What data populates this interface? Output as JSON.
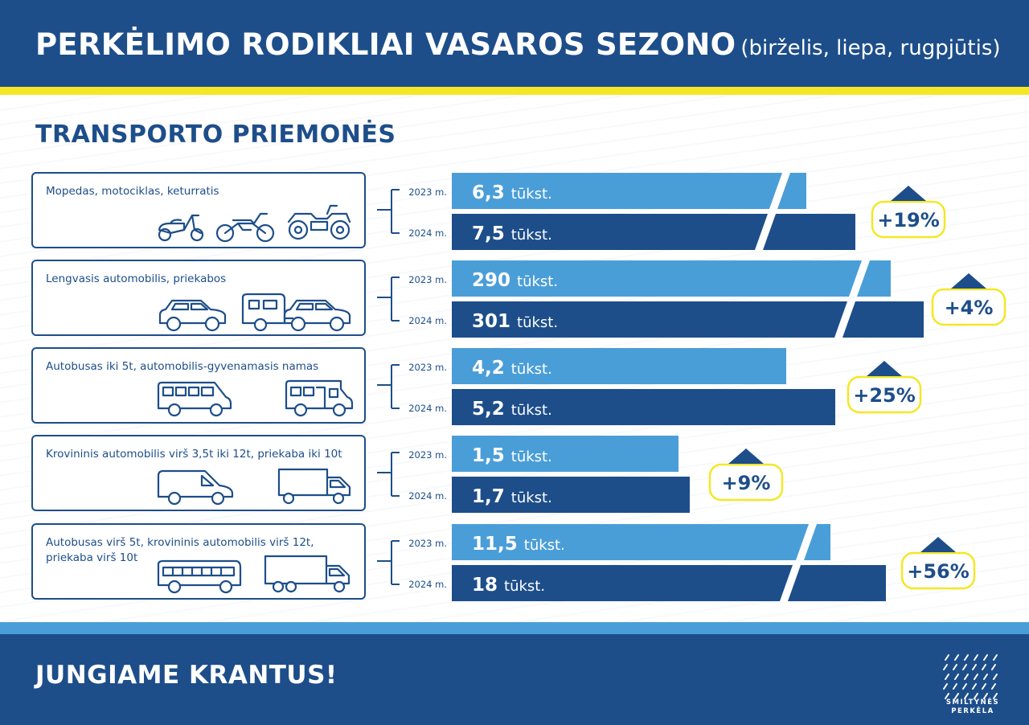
{
  "header": {
    "title_main": "PERKĖLIMO RODIKLIAI VASAROS SEZONO",
    "title_sub": "(birželis, liepa, rugpjūtis)"
  },
  "section_title": "TRANSPORTO PRIEMONĖS",
  "footer": {
    "slogan": "JUNGIAME KRANTUS!",
    "logo_line1": "SMILTYNĖS",
    "logo_line2": "PERKĖLA"
  },
  "colors": {
    "dark_blue": "#1d4e8a",
    "light_blue": "#4a9ed8",
    "yellow": "#f4e726"
  },
  "chart_data": {
    "type": "bar",
    "orientation": "horizontal",
    "unit": "tūkst.",
    "series_names": [
      "2023 m.",
      "2024 m."
    ],
    "categories": [
      {
        "label": "Mopedas, motociklas, keturratis",
        "icons": [
          "moped-icon",
          "motorcycle-icon",
          "quad-bike-icon"
        ],
        "values": [
          6.3,
          7.5
        ],
        "value_labels": [
          "6,3",
          "7,5"
        ],
        "change": "+19%",
        "broken_axis": true
      },
      {
        "label": "Lengvasis automobilis, priekabos",
        "icons": [
          "car-icon",
          "caravan-trailer-icon",
          "car-icon"
        ],
        "values": [
          290,
          301
        ],
        "value_labels": [
          "290",
          "301"
        ],
        "change": "+4%",
        "broken_axis": true
      },
      {
        "label": "Autobusas iki 5t, automobilis-gyvenamasis namas",
        "icons": [
          "minibus-icon",
          "camper-van-icon"
        ],
        "values": [
          4.2,
          5.2
        ],
        "value_labels": [
          "4,2",
          "5,2"
        ],
        "change": "+25%",
        "broken_axis": false
      },
      {
        "label": "Krovininis automobilis virš 3,5t iki 12t, priekaba iki 10t",
        "icons": [
          "van-icon",
          "box-truck-icon"
        ],
        "values": [
          1.5,
          1.7
        ],
        "value_labels": [
          "1,5",
          "1,7"
        ],
        "change": "+9%",
        "broken_axis": false
      },
      {
        "label": "Autobusas virš 5t, krovininis automobilis virš 12t, priekaba virš 10t",
        "icons": [
          "bus-icon",
          "heavy-truck-icon"
        ],
        "values": [
          11.5,
          18
        ],
        "value_labels": [
          "11,5",
          "18"
        ],
        "change": "+56%",
        "broken_axis": true
      }
    ]
  }
}
